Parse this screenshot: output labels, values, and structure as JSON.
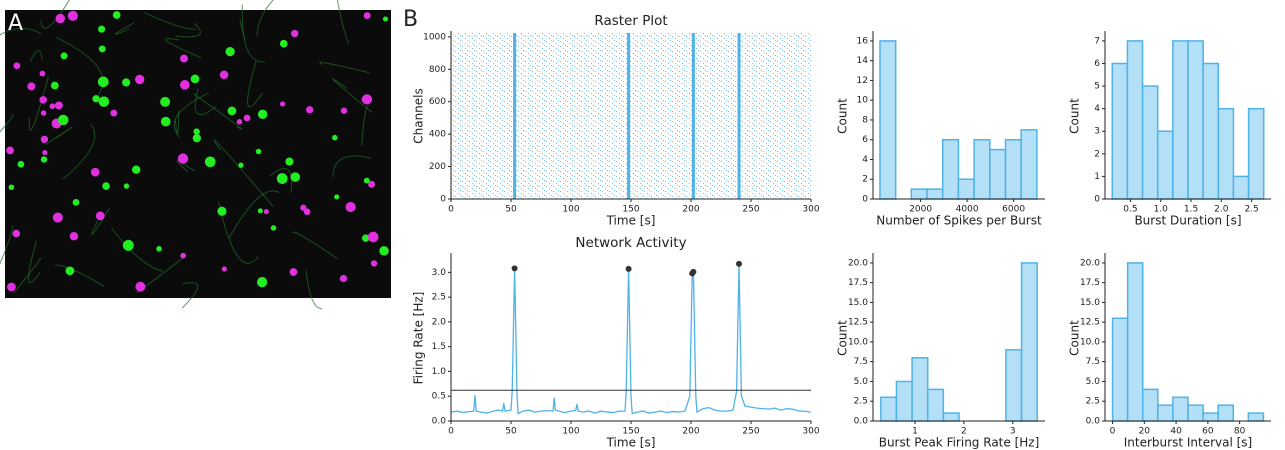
{
  "panel_labels": [
    "A",
    "B"
  ],
  "chart_data": [
    {
      "type": "raster",
      "title": "Raster Plot",
      "xlabel": "Time [s]",
      "ylabel": "Channels",
      "color": "#4fb3e8",
      "burst_times": [
        53,
        148,
        202,
        240
      ],
      "xlim": [
        0,
        300
      ],
      "xticks": [
        0,
        50,
        100,
        150,
        200,
        250,
        300
      ],
      "ylim": [
        0,
        1024
      ],
      "yticks": [
        0,
        200,
        400,
        600,
        800,
        1000
      ]
    },
    {
      "type": "line",
      "title": "Network Activity",
      "xlabel": "Time [s]",
      "ylabel": "Firing Rate [Hz]",
      "x": [
        0,
        5,
        10,
        15,
        19,
        20,
        21,
        25,
        30,
        35,
        40,
        43,
        44,
        45,
        50,
        51,
        53,
        55,
        56,
        60,
        65,
        70,
        75,
        80,
        85,
        86,
        87,
        90,
        95,
        100,
        104,
        105,
        106,
        110,
        115,
        120,
        125,
        130,
        135,
        140,
        145,
        146,
        148,
        150,
        151,
        155,
        160,
        165,
        170,
        175,
        180,
        185,
        190,
        195,
        199,
        201,
        202,
        204,
        205,
        210,
        215,
        220,
        225,
        230,
        235,
        238,
        240,
        242,
        245,
        250,
        255,
        260,
        265,
        270,
        275,
        280,
        285,
        290,
        295,
        300
      ],
      "series": [
        {
          "color": "#4fb3e8",
          "values": [
            0.18,
            0.2,
            0.17,
            0.19,
            0.2,
            0.52,
            0.2,
            0.18,
            0.16,
            0.2,
            0.22,
            0.2,
            0.36,
            0.2,
            0.22,
            0.6,
            3.08,
            0.5,
            0.15,
            0.2,
            0.22,
            0.18,
            0.2,
            0.21,
            0.2,
            0.47,
            0.22,
            0.2,
            0.17,
            0.2,
            0.22,
            0.34,
            0.2,
            0.18,
            0.2,
            0.16,
            0.2,
            0.18,
            0.17,
            0.2,
            0.2,
            0.6,
            3.07,
            0.5,
            0.15,
            0.18,
            0.2,
            0.16,
            0.18,
            0.2,
            0.17,
            0.19,
            0.18,
            0.2,
            0.5,
            2.98,
            3.01,
            0.5,
            0.18,
            0.25,
            0.27,
            0.22,
            0.2,
            0.2,
            0.22,
            0.6,
            3.17,
            0.5,
            0.3,
            0.28,
            0.26,
            0.25,
            0.24,
            0.26,
            0.22,
            0.25,
            0.24,
            0.2,
            0.2,
            0.18
          ]
        }
      ],
      "threshold": 0.62,
      "threshold_color": "#333333",
      "peaks": {
        "color": "#333333",
        "x": [
          53,
          148,
          201,
          202,
          240
        ],
        "values": [
          3.08,
          3.07,
          2.98,
          3.01,
          3.17
        ]
      },
      "xlim": [
        0,
        300
      ],
      "xticks": [
        0,
        50,
        100,
        150,
        200,
        250,
        300
      ],
      "ylim": [
        0,
        3.35
      ],
      "yticks": [
        {
          "value": 0,
          "label": "0.0"
        },
        0.5,
        {
          "value": 1,
          "label": "1.0"
        },
        1.5,
        {
          "value": 2,
          "label": "2.0"
        },
        2.5,
        {
          "value": 3,
          "label": "3.0"
        }
      ]
    },
    {
      "type": "histogram",
      "xlabel": "Number of Spikes per Burst",
      "ylabel": "Count",
      "color": "#b3dff7",
      "edge_color": "#4fb3e8",
      "bins": [
        250,
        925,
        1600,
        2275,
        2950,
        3625,
        4300,
        4975,
        5650,
        6325,
        7000
      ],
      "counts": [
        16,
        0,
        1,
        1,
        6,
        2,
        6,
        5,
        6,
        7
      ],
      "xlim": [
        -50,
        7350
      ],
      "xticks": [
        2000,
        4000,
        6000
      ],
      "ylim": [
        0,
        16.8
      ],
      "yticks": [
        0,
        2,
        4,
        6,
        8,
        10,
        12,
        14,
        16
      ]
    },
    {
      "type": "histogram",
      "xlabel": "Burst Duration [s]",
      "ylabel": "Count",
      "color": "#b3dff7",
      "edge_color": "#4fb3e8",
      "bins": [
        0.2,
        0.45,
        0.7,
        0.95,
        1.2,
        1.45,
        1.7,
        1.95,
        2.2,
        2.45,
        2.7
      ],
      "counts": [
        6,
        7,
        5,
        3,
        7,
        7,
        6,
        4,
        1,
        4
      ],
      "xlim": [
        0.08,
        2.82
      ],
      "xticks": [
        0.5,
        {
          "value": 1,
          "label": "1.0"
        },
        1.5,
        {
          "value": 2,
          "label": "2.0"
        },
        2.5
      ],
      "ylim": [
        0,
        7.35
      ],
      "yticks": [
        0,
        1,
        2,
        3,
        4,
        5,
        6,
        7
      ]
    },
    {
      "type": "histogram",
      "xlabel": "Burst Peak Firing Rate [Hz]",
      "ylabel": "Count",
      "color": "#b3dff7",
      "edge_color": "#4fb3e8",
      "bins": [
        0.3,
        0.62,
        0.94,
        1.26,
        1.58,
        1.9,
        2.22,
        2.54,
        2.86,
        3.18,
        3.5
      ],
      "counts": [
        3,
        5,
        8,
        4,
        1,
        0,
        0,
        0,
        9,
        20
      ],
      "xlim": [
        0.14,
        3.66
      ],
      "xticks": [
        1,
        2,
        3
      ],
      "ylim": [
        0,
        21
      ],
      "yticks": [
        {
          "value": 0,
          "label": "0.0"
        },
        2.5,
        {
          "value": 5,
          "label": "5.0"
        },
        7.5,
        {
          "value": 10,
          "label": "10.0"
        },
        12.5,
        {
          "value": 15,
          "label": "15.0"
        },
        17.5,
        {
          "value": 20,
          "label": "20.0"
        }
      ]
    },
    {
      "type": "histogram",
      "xlabel": "Interburst Interval [s]",
      "ylabel": "Count",
      "color": "#b3dff7",
      "edge_color": "#4fb3e8",
      "bins": [
        0,
        9.5,
        19,
        28.5,
        38,
        47.5,
        57,
        66.5,
        76,
        85.5,
        95
      ],
      "counts": [
        13,
        20,
        4,
        2,
        3,
        2,
        1,
        2,
        0,
        1
      ],
      "xlim": [
        -4.75,
        99.75
      ],
      "xticks": [
        0,
        20,
        40,
        60,
        80
      ],
      "ylim": [
        0,
        21
      ],
      "yticks": [
        {
          "value": 0,
          "label": "0.0"
        },
        2.5,
        {
          "value": 5,
          "label": "5.0"
        },
        7.5,
        {
          "value": 10,
          "label": "10.0"
        },
        12.5,
        {
          "value": 15,
          "label": "15.0"
        },
        17.5,
        {
          "value": 20,
          "label": "20.0"
        }
      ]
    }
  ]
}
